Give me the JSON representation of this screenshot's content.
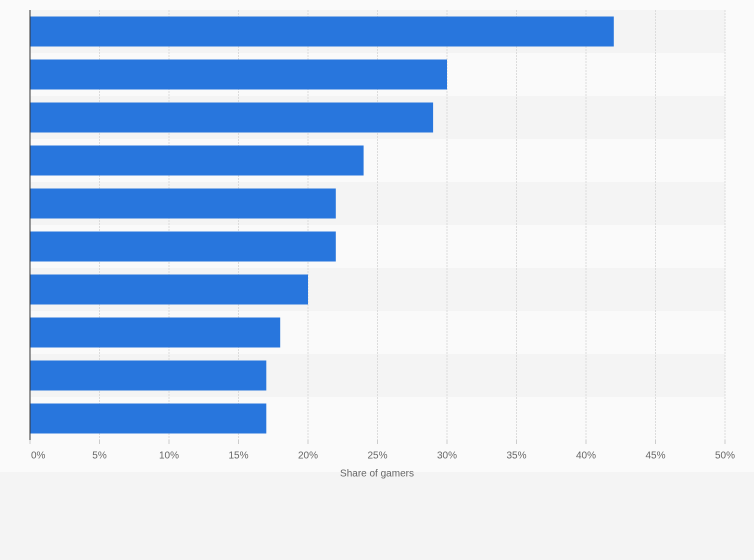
{
  "chart_data": {
    "type": "bar",
    "orientation": "horizontal",
    "categories": [
      null,
      null,
      null,
      null,
      null,
      null,
      null,
      null,
      null,
      null
    ],
    "values": [
      42,
      30,
      29,
      24,
      22,
      22,
      20,
      18,
      17,
      17
    ],
    "color": "#2876dd",
    "xlabel": "Share of gamers",
    "xlim": [
      0,
      50
    ],
    "xticks": [
      {
        "value": 0,
        "label": "0%"
      },
      {
        "value": 5,
        "label": "5%"
      },
      {
        "value": 10,
        "label": "10%"
      },
      {
        "value": 15,
        "label": "15%"
      },
      {
        "value": 20,
        "label": "20%"
      },
      {
        "value": 25,
        "label": "25%"
      },
      {
        "value": 30,
        "label": "30%"
      },
      {
        "value": 35,
        "label": "35%"
      },
      {
        "value": 40,
        "label": "40%"
      },
      {
        "value": 45,
        "label": "45%"
      },
      {
        "value": 50,
        "label": "50%"
      }
    ],
    "grid": true
  }
}
